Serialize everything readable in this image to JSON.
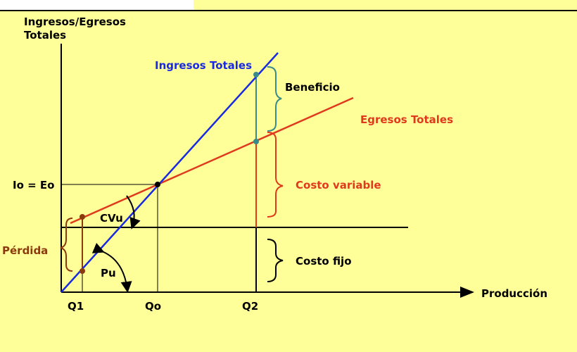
{
  "labels": {
    "y_axis_line1": "Ingresos/Egresos",
    "y_axis_line2": "Totales",
    "x_axis": "Producción",
    "ingresos_totales": "Ingresos Totales",
    "egresos_totales": "Egresos Totales",
    "beneficio": "Beneficio",
    "costo_variable": "Costo variable",
    "costo_fijo": "Costo fijo",
    "perdida": "Pérdida",
    "io_eo": "Io = Eo",
    "cvu": "CVu",
    "pu": "Pu",
    "q1": "Q1",
    "qo": "Qo",
    "q2": "Q2"
  },
  "colors": {
    "background": "#ffff99",
    "ingresos": "#1a2ae0",
    "egresos": "#e03a1e",
    "beneficio": "#3a8a8a",
    "perdida": "#8b3a0e",
    "axes": "#000000"
  }
}
